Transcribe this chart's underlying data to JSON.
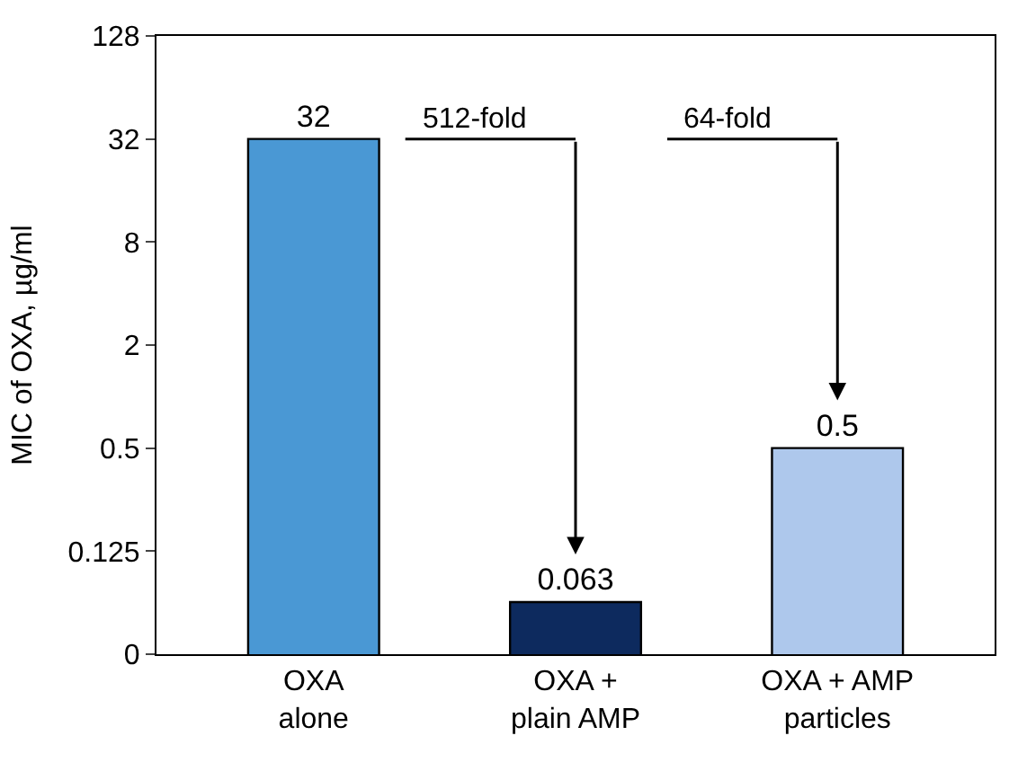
{
  "chart_data": {
    "type": "bar",
    "ylabel": "MIC of OXA, µg/ml",
    "categories": [
      "OXA\nalone",
      "OXA +\nplain AMP",
      "OXA + AMP\nparticles"
    ],
    "values": [
      32,
      0.063,
      0.5
    ],
    "colors": [
      "#4a98d4",
      "#0d2a5e",
      "#aec8ec"
    ],
    "log": true,
    "ylim": [
      0.03125,
      128
    ],
    "yticks": [
      {
        "value": 0.03125,
        "label": "0"
      },
      0.125,
      0.5,
      2,
      8,
      32,
      128
    ],
    "data_labels": true,
    "annotations": [
      "512-fold",
      "64-fold"
    ]
  }
}
